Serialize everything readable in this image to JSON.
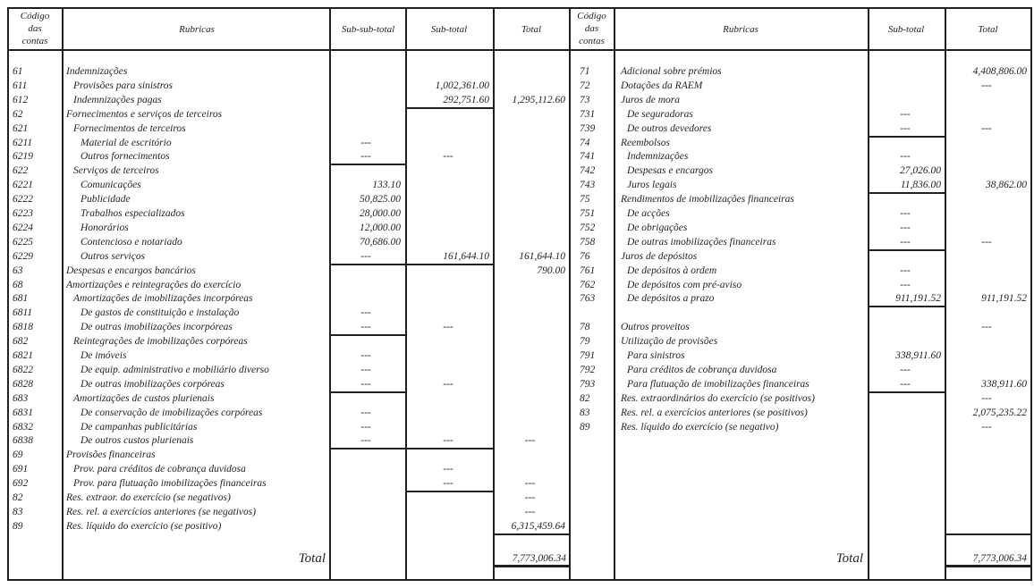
{
  "headers": {
    "left": {
      "code": [
        "Código",
        "das",
        "contas"
      ],
      "rubricas": "Rubricas",
      "subsubtotal": "Sub-sub-total",
      "subtotal": "Sub-total",
      "total": "Total"
    },
    "right": {
      "code": [
        "Código",
        "das",
        "contas"
      ],
      "rubricas": "Rubricas",
      "subtotal": "Sub-total",
      "total": "Total"
    }
  },
  "left": {
    "rows": [
      {
        "code": "61",
        "label": "Indemnizações",
        "indent": 0,
        "ssub": "",
        "sub": "",
        "total": ""
      },
      {
        "code": "611",
        "label": "Provisões para sinistros",
        "indent": 1,
        "ssub": "",
        "sub": "1,002,361.00",
        "total": ""
      },
      {
        "code": "612",
        "label": "Indemnizações pagas",
        "indent": 1,
        "ssub": "",
        "sub": "292,751.60",
        "total": "1,295,112.60"
      },
      {
        "code": "62",
        "label": "Fornecimentos e serviços de terceiros",
        "indent": 0,
        "ssub": "",
        "sub": "",
        "total": ""
      },
      {
        "code": "621",
        "label": "Fornecimentos de terceiros",
        "indent": 1,
        "ssub": "",
        "sub": "",
        "total": ""
      },
      {
        "code": "6211",
        "label": "Material de escritório",
        "indent": 2,
        "ssub": "---",
        "sub": "",
        "total": ""
      },
      {
        "code": "6219",
        "label": "Outros fornecimentos",
        "indent": 2,
        "ssub": "---",
        "sub": "---",
        "total": ""
      },
      {
        "code": "622",
        "label": "Serviços de terceiros",
        "indent": 1,
        "ssub": "",
        "sub": "",
        "total": ""
      },
      {
        "code": "6221",
        "label": "Comunicações",
        "indent": 2,
        "ssub": "133.10",
        "sub": "",
        "total": ""
      },
      {
        "code": "6222",
        "label": "Publicidade",
        "indent": 2,
        "ssub": "50,825.00",
        "sub": "",
        "total": ""
      },
      {
        "code": "6223",
        "label": "Trabalhos especializados",
        "indent": 2,
        "ssub": "28,000.00",
        "sub": "",
        "total": ""
      },
      {
        "code": "6224",
        "label": "Honorários",
        "indent": 2,
        "ssub": "12,000.00",
        "sub": "",
        "total": ""
      },
      {
        "code": "6225",
        "label": "Contencioso e notariado",
        "indent": 2,
        "ssub": "70,686.00",
        "sub": "",
        "total": ""
      },
      {
        "code": "6229",
        "label": "Outros serviços",
        "indent": 2,
        "ssub": "---",
        "sub": "161,644.10",
        "total": "161,644.10"
      },
      {
        "code": "63",
        "label": "Despesas e encargos bancários",
        "indent": 0,
        "ssub": "",
        "sub": "",
        "total": "790.00"
      },
      {
        "code": "68",
        "label": "Amortizações e reintegrações do exercício",
        "indent": 0,
        "ssub": "",
        "sub": "",
        "total": ""
      },
      {
        "code": "681",
        "label": "Amortizações de imobilizações incorpóreas",
        "indent": 1,
        "ssub": "",
        "sub": "",
        "total": ""
      },
      {
        "code": "6811",
        "label": "De gastos de constituição e instalação",
        "indent": 2,
        "ssub": "---",
        "sub": "",
        "total": ""
      },
      {
        "code": "6818",
        "label": "De outras imobilizações incorpóreas",
        "indent": 2,
        "ssub": "---",
        "sub": "---",
        "total": ""
      },
      {
        "code": "682",
        "label": "Reintegrações de imobilizações corpóreas",
        "indent": 1,
        "ssub": "",
        "sub": "",
        "total": ""
      },
      {
        "code": "6821",
        "label": "De imóveis",
        "indent": 2,
        "ssub": "---",
        "sub": "",
        "total": ""
      },
      {
        "code": "6822",
        "label": "De equip. administrativo e mobiliário diverso",
        "indent": 2,
        "ssub": "---",
        "sub": "",
        "total": ""
      },
      {
        "code": "6828",
        "label": "De outras imobilizações corpóreas",
        "indent": 2,
        "ssub": "---",
        "sub": "---",
        "total": ""
      },
      {
        "code": "683",
        "label": "Amortizações de custos plurienais",
        "indent": 1,
        "ssub": "",
        "sub": "",
        "total": ""
      },
      {
        "code": "6831",
        "label": "De conservação de imobilizações corpóreas",
        "indent": 2,
        "ssub": "---",
        "sub": "",
        "total": ""
      },
      {
        "code": "6832",
        "label": "De campanhas publicitárias",
        "indent": 2,
        "ssub": "---",
        "sub": "",
        "total": ""
      },
      {
        "code": "6838",
        "label": "De outros custos plurienais",
        "indent": 2,
        "ssub": "---",
        "sub": "---",
        "total": "---"
      },
      {
        "code": "69",
        "label": "Provisões financeiras",
        "indent": 0,
        "ssub": "",
        "sub": "",
        "total": ""
      },
      {
        "code": "691",
        "label": "Prov. para créditos de cobrança duvidosa",
        "indent": 1,
        "ssub": "",
        "sub": "---",
        "total": ""
      },
      {
        "code": "692",
        "label": "Prov. para flutuação imobilizações financeiras",
        "indent": 1,
        "ssub": "",
        "sub": "---",
        "total": "---"
      },
      {
        "code": "82",
        "label": "Res. extraor. do exercício (se negativos)",
        "indent": 0,
        "ssub": "",
        "sub": "",
        "total": "---"
      },
      {
        "code": "83",
        "label": "Res. rel. a exercícios anteriores (se negativos)",
        "indent": 0,
        "ssub": "",
        "sub": "",
        "total": "---"
      },
      {
        "code": "89",
        "label": "Res. líquido do exercício (se positivo)",
        "indent": 0,
        "ssub": "",
        "sub": "",
        "total": "6,315,459.64"
      }
    ],
    "total_label": "Total",
    "total_value": "7,773,006.34"
  },
  "right": {
    "rows": [
      {
        "code": "71",
        "label": "Adicional sobre prémios",
        "indent": 0,
        "sub": "",
        "total": "4,408,806.00"
      },
      {
        "code": "72",
        "label": "Dotações da RAEM",
        "indent": 0,
        "sub": "",
        "total": "---"
      },
      {
        "code": "73",
        "label": "Juros de mora",
        "indent": 0,
        "sub": "",
        "total": ""
      },
      {
        "code": "731",
        "label": "De seguradoras",
        "indent": 1,
        "sub": "---",
        "total": ""
      },
      {
        "code": "739",
        "label": "De outros devedores",
        "indent": 1,
        "sub": "---",
        "total": "---"
      },
      {
        "code": "74",
        "label": "Reembolsos",
        "indent": 0,
        "sub": "",
        "total": ""
      },
      {
        "code": "741",
        "label": "Indemnizações",
        "indent": 1,
        "sub": "---",
        "total": ""
      },
      {
        "code": "742",
        "label": "Despesas e encargos",
        "indent": 1,
        "sub": "27,026.00",
        "total": ""
      },
      {
        "code": "743",
        "label": "Juros legais",
        "indent": 1,
        "sub": "11,836.00",
        "total": "38,862.00"
      },
      {
        "code": "75",
        "label": "Rendimentos de imobilizações financeiras",
        "indent": 0,
        "sub": "",
        "total": ""
      },
      {
        "code": "751",
        "label": "De acções",
        "indent": 1,
        "sub": "---",
        "total": ""
      },
      {
        "code": "752",
        "label": "De obrigações",
        "indent": 1,
        "sub": "---",
        "total": ""
      },
      {
        "code": "758",
        "label": "De outras imobilizações financeiras",
        "indent": 1,
        "sub": "---",
        "total": "---"
      },
      {
        "code": "76",
        "label": "Juros de depósitos",
        "indent": 0,
        "sub": "",
        "total": ""
      },
      {
        "code": "761",
        "label": "De depósitos à ordem",
        "indent": 1,
        "sub": "---",
        "total": ""
      },
      {
        "code": "762",
        "label": "De depósitos com pré-aviso",
        "indent": 1,
        "sub": "---",
        "total": ""
      },
      {
        "code": "763",
        "label": "De depósitos a prazo",
        "indent": 1,
        "sub": "911,191.52",
        "total": "911,191.52"
      },
      {
        "code": "",
        "label": "",
        "indent": 0,
        "sub": "",
        "total": ""
      },
      {
        "code": "78",
        "label": "Outros proveitos",
        "indent": 0,
        "sub": "",
        "total": "---"
      },
      {
        "code": "79",
        "label": "Utilização de provisões",
        "indent": 0,
        "sub": "",
        "total": ""
      },
      {
        "code": "791",
        "label": "Para sinistros",
        "indent": 1,
        "sub": "338,911.60",
        "total": ""
      },
      {
        "code": "792",
        "label": "Para créditos de cobrança duvidosa",
        "indent": 1,
        "sub": "---",
        "total": ""
      },
      {
        "code": "793",
        "label": "Para flutuação de imobilizações financeiras",
        "indent": 1,
        "sub": "---",
        "total": "338,911.60"
      },
      {
        "code": "82",
        "label": "Res. extraordinários do exercício (se positivos)",
        "indent": 0,
        "sub": "",
        "total": "---"
      },
      {
        "code": "83",
        "label": "Res. rel. a exercícios anteriores (se positivos)",
        "indent": 0,
        "sub": "",
        "total": "2,075,235.22"
      },
      {
        "code": "89",
        "label": "Res. líquido do exercício (se negativo)",
        "indent": 0,
        "sub": "",
        "total": "---"
      }
    ],
    "total_label": "Total",
    "total_value": "7,773,006.34"
  }
}
